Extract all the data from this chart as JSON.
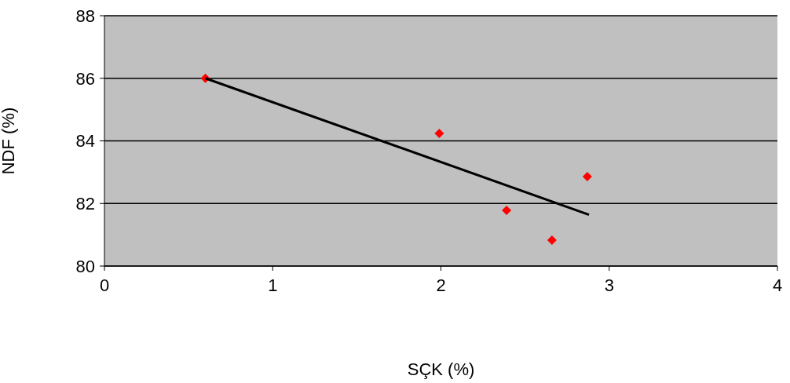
{
  "chart_data": {
    "type": "scatter",
    "xlabel": "SÇK (%)",
    "ylabel": "NDF (%)",
    "xlim": [
      0,
      4
    ],
    "xticks": [
      0,
      1,
      2,
      3,
      4
    ],
    "ylim": [
      80,
      88
    ],
    "yticks": [
      80,
      82,
      84,
      86,
      88
    ],
    "grid": "y",
    "series": [
      {
        "color": "#ff0000",
        "marker": "diamond",
        "x": [
          0.6,
          1.99,
          2.39,
          2.66,
          2.87
        ],
        "values": [
          86.0,
          84.24,
          81.78,
          80.83,
          82.86
        ]
      },
      {
        "type": "line",
        "marker": "none",
        "color": "#000000",
        "x": [
          0.6,
          2.88
        ],
        "values": [
          86.0,
          81.64
        ]
      }
    ]
  }
}
